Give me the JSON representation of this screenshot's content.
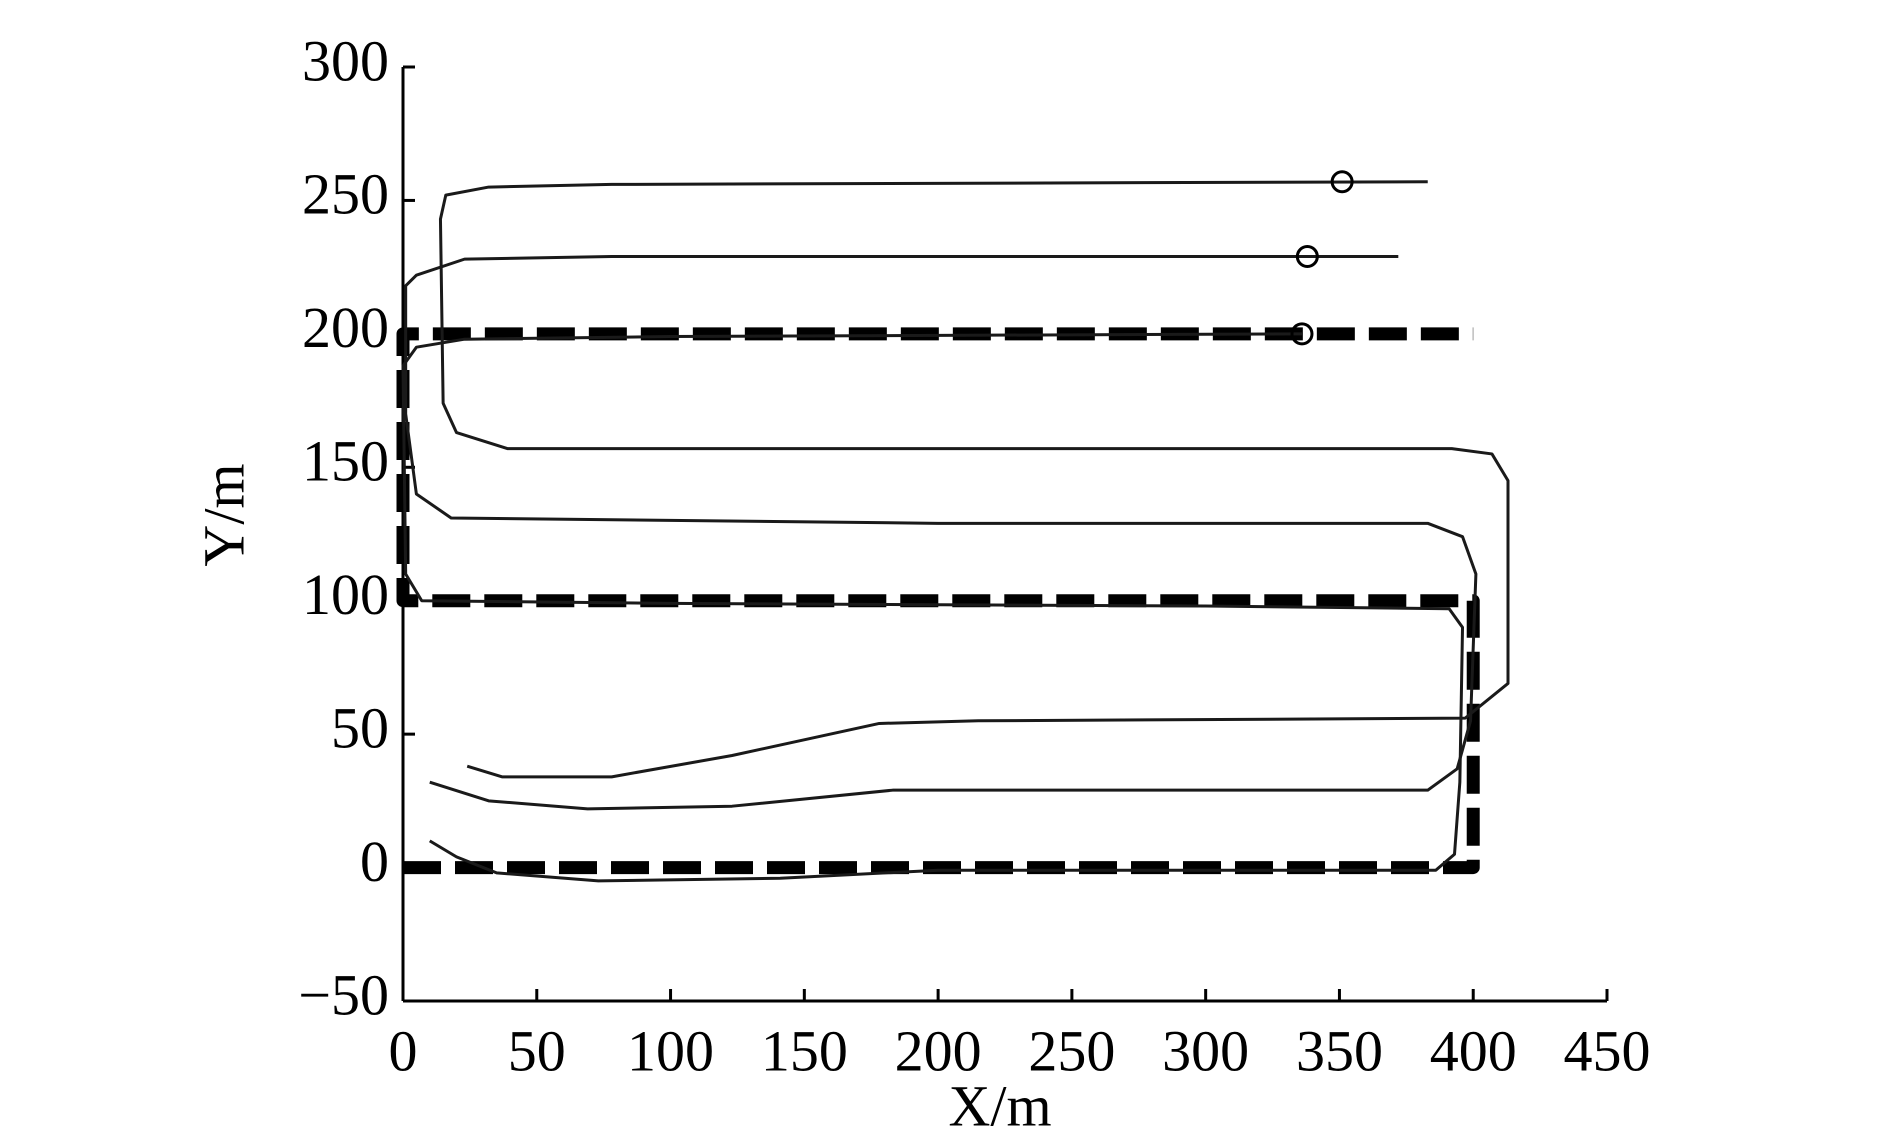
{
  "chart_data": {
    "type": "line",
    "xlabel": "X/m",
    "ylabel": "Y/m",
    "xlim": [
      0,
      450
    ],
    "ylim": [
      -50,
      300
    ],
    "xticks": [
      0,
      50,
      100,
      150,
      200,
      250,
      300,
      350,
      400,
      450
    ],
    "yticks": [
      {
        "value": -50,
        "label": "−50"
      },
      0,
      50,
      100,
      150,
      200,
      250,
      300
    ],
    "series": [
      {
        "color": "#000000",
        "style": "dashed",
        "x": [
          0,
          400,
          400,
          0,
          0,
          400
        ],
        "values": [
          0,
          0,
          100,
          100,
          200,
          200
        ]
      },
      {
        "color": "#1a1a1a",
        "style": "solid",
        "x": [
          10,
          20,
          35,
          73,
          141,
          200,
          300,
          386,
          393,
          395,
          396,
          391,
          300,
          100,
          7,
          1,
          0,
          5,
          23,
          100,
          336
        ],
        "values": [
          10,
          4,
          -2,
          -5,
          -4,
          -1,
          -1,
          -1,
          5,
          32,
          90,
          97,
          98,
          99,
          100,
          110,
          188,
          195,
          198,
          199,
          200
        ]
      },
      {
        "color": "#1a1a1a",
        "style": "solid",
        "x": [
          10,
          32,
          69,
          123,
          183,
          300,
          383,
          394,
          399,
          401,
          396,
          383,
          200,
          18,
          5,
          1,
          1,
          5,
          23,
          78,
          372
        ],
        "values": [
          32,
          25,
          22,
          23,
          29,
          29,
          29,
          37,
          55,
          110,
          124,
          129,
          129,
          131,
          140,
          170,
          218,
          222,
          228,
          229,
          229
        ]
      },
      {
        "color": "#1a1a1a",
        "style": "solid",
        "x": [
          24,
          37,
          78,
          123,
          178,
          215,
          397,
          413,
          413,
          407,
          392,
          39,
          20,
          15,
          14,
          16,
          32,
          78,
          383
        ],
        "values": [
          38,
          34,
          34,
          42,
          54,
          55,
          56,
          69,
          145,
          155,
          157,
          157,
          163,
          174,
          243,
          252,
          255,
          256,
          257
        ]
      }
    ],
    "markers": {
      "color": "#000000",
      "x": [
        351,
        338,
        336
      ],
      "values": [
        257,
        229,
        200
      ]
    }
  }
}
